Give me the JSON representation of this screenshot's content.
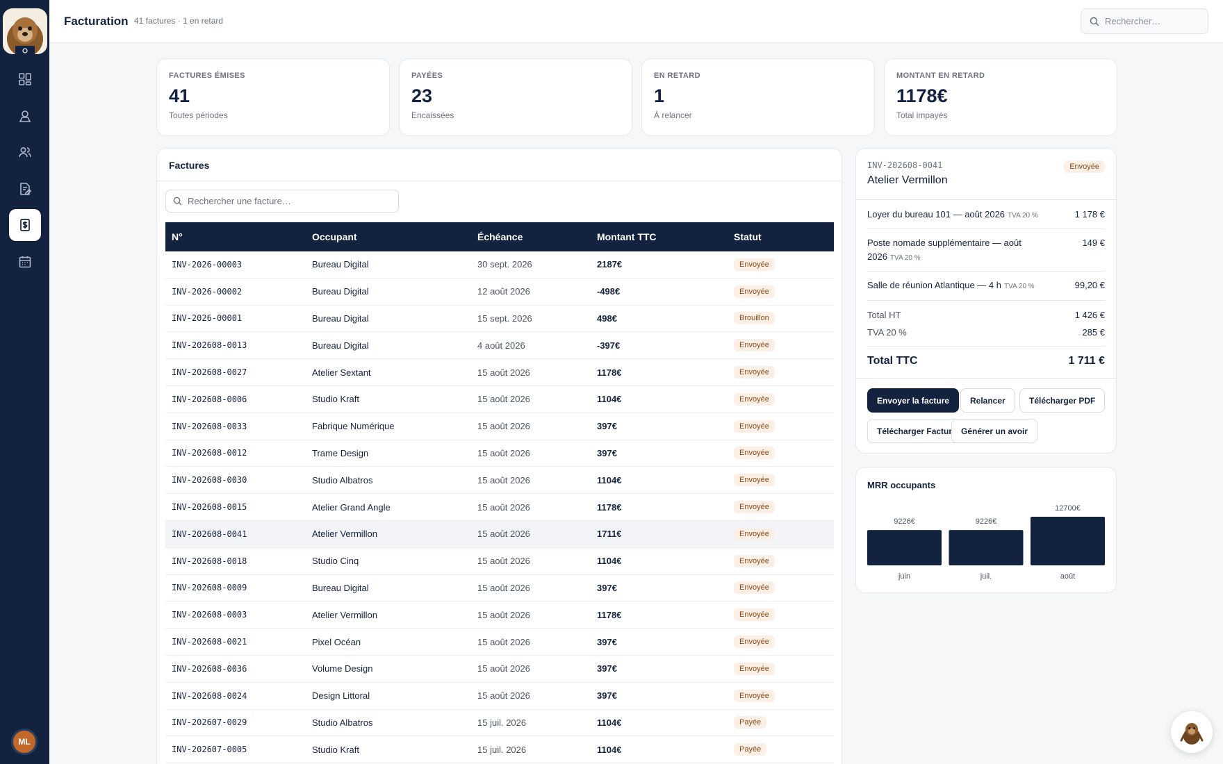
{
  "header": {
    "title": "Facturation",
    "subtitle": "41 factures · 1 en retard",
    "search_placeholder": "Rechercher…"
  },
  "sidebar": {
    "items": [
      {
        "icon": "dashboard-icon"
      },
      {
        "icon": "spaces-icon"
      },
      {
        "icon": "members-icon"
      },
      {
        "icon": "contracts-icon"
      },
      {
        "icon": "billing-icon",
        "active": true
      },
      {
        "icon": "calendar-icon"
      }
    ],
    "avatar_initials": "ML"
  },
  "stats": [
    {
      "label": "FACTURES ÉMISES",
      "value": "41",
      "sub": "Toutes périodes"
    },
    {
      "label": "PAYÉES",
      "value": "23",
      "sub": "Encaissées"
    },
    {
      "label": "EN RETARD",
      "value": "1",
      "sub": "À relancer"
    },
    {
      "label": "MONTANT EN RETARD",
      "value": "1178€",
      "sub": "Total impayés"
    }
  ],
  "invoices": {
    "title": "Factures",
    "search_placeholder": "Rechercher une facture…",
    "columns": [
      "N°",
      "Occupant",
      "Échéance",
      "Montant TTC",
      "Statut"
    ],
    "rows": [
      {
        "num": "INV-2026-00003",
        "occupant": "Bureau Digital",
        "due": "30 sept. 2026",
        "amount": "2187€",
        "status": "Envoyée"
      },
      {
        "num": "INV-2026-00002",
        "occupant": "Bureau Digital",
        "due": "12 août 2026",
        "amount": "-498€",
        "status": "Envoyée"
      },
      {
        "num": "INV-2026-00001",
        "occupant": "Bureau Digital",
        "due": "15 sept. 2026",
        "amount": "498€",
        "status": "Brouillon"
      },
      {
        "num": "INV-202608-0013",
        "occupant": "Bureau Digital",
        "due": "4 août 2026",
        "amount": "-397€",
        "status": "Envoyée"
      },
      {
        "num": "INV-202608-0027",
        "occupant": "Atelier Sextant",
        "due": "15 août 2026",
        "amount": "1178€",
        "status": "Envoyée"
      },
      {
        "num": "INV-202608-0006",
        "occupant": "Studio Kraft",
        "due": "15 août 2026",
        "amount": "1104€",
        "status": "Envoyée"
      },
      {
        "num": "INV-202608-0033",
        "occupant": "Fabrique Numérique",
        "due": "15 août 2026",
        "amount": "397€",
        "status": "Envoyée"
      },
      {
        "num": "INV-202608-0012",
        "occupant": "Trame Design",
        "due": "15 août 2026",
        "amount": "397€",
        "status": "Envoyée"
      },
      {
        "num": "INV-202608-0030",
        "occupant": "Studio Albatros",
        "due": "15 août 2026",
        "amount": "1104€",
        "status": "Envoyée"
      },
      {
        "num": "INV-202608-0015",
        "occupant": "Atelier Grand Angle",
        "due": "15 août 2026",
        "amount": "1178€",
        "status": "Envoyée"
      },
      {
        "num": "INV-202608-0041",
        "occupant": "Atelier Vermillon",
        "due": "15 août 2026",
        "amount": "1711€",
        "status": "Envoyée",
        "selected": true
      },
      {
        "num": "INV-202608-0018",
        "occupant": "Studio Cinq",
        "due": "15 août 2026",
        "amount": "1104€",
        "status": "Envoyée"
      },
      {
        "num": "INV-202608-0009",
        "occupant": "Bureau Digital",
        "due": "15 août 2026",
        "amount": "397€",
        "status": "Envoyée"
      },
      {
        "num": "INV-202608-0003",
        "occupant": "Atelier Vermillon",
        "due": "15 août 2026",
        "amount": "1178€",
        "status": "Envoyée"
      },
      {
        "num": "INV-202608-0021",
        "occupant": "Pixel Océan",
        "due": "15 août 2026",
        "amount": "397€",
        "status": "Envoyée"
      },
      {
        "num": "INV-202608-0036",
        "occupant": "Volume Design",
        "due": "15 août 2026",
        "amount": "397€",
        "status": "Envoyée"
      },
      {
        "num": "INV-202608-0024",
        "occupant": "Design Littoral",
        "due": "15 août 2026",
        "amount": "397€",
        "status": "Envoyée"
      },
      {
        "num": "INV-202607-0029",
        "occupant": "Studio Albatros",
        "due": "15 juil. 2026",
        "amount": "1104€",
        "status": "Payée"
      },
      {
        "num": "INV-202607-0005",
        "occupant": "Studio Kraft",
        "due": "15 juil. 2026",
        "amount": "1104€",
        "status": "Payée"
      }
    ]
  },
  "detail": {
    "number": "INV-202608-0041",
    "status": "Envoyée",
    "occupant": "Atelier Vermillon",
    "lines": [
      {
        "desc": "Loyer du bureau 101 — août 2026",
        "vat": "TVA 20 %",
        "amount": "1 178 €"
      },
      {
        "desc": "Poste nomade supplémentaire — août 2026",
        "vat": "TVA 20 %",
        "amount": "149 €"
      },
      {
        "desc": "Salle de réunion Atlantique — 4 h",
        "vat": "TVA 20 %",
        "amount": "99,20 €"
      }
    ],
    "total_ht_label": "Total HT",
    "total_ht": "1 426 €",
    "tva_label": "TVA 20 %",
    "tva": "285 €",
    "total_ttc_label": "Total TTC",
    "total_ttc": "1 711 €",
    "buttons": {
      "send": "Envoyer la facture",
      "remind": "Relancer",
      "pdf": "Télécharger PDF",
      "facturx": "Télécharger Factur-X",
      "credit": "Générer un avoir"
    }
  },
  "mrr": {
    "title": "MRR occupants",
    "bar_color": "#13233f",
    "chart_data": {
      "type": "bar",
      "categories": [
        "juin",
        "juil.",
        "août"
      ],
      "values": [
        9226,
        9226,
        12700
      ],
      "value_labels": [
        "9226€",
        "9226€",
        "12700€"
      ],
      "ylim": [
        0,
        12700
      ]
    }
  },
  "colors": {
    "navy": "#13233f",
    "badge_bg": "#fbefe6",
    "badge_text": "#8a4a14",
    "avatar": "#c2692a"
  }
}
